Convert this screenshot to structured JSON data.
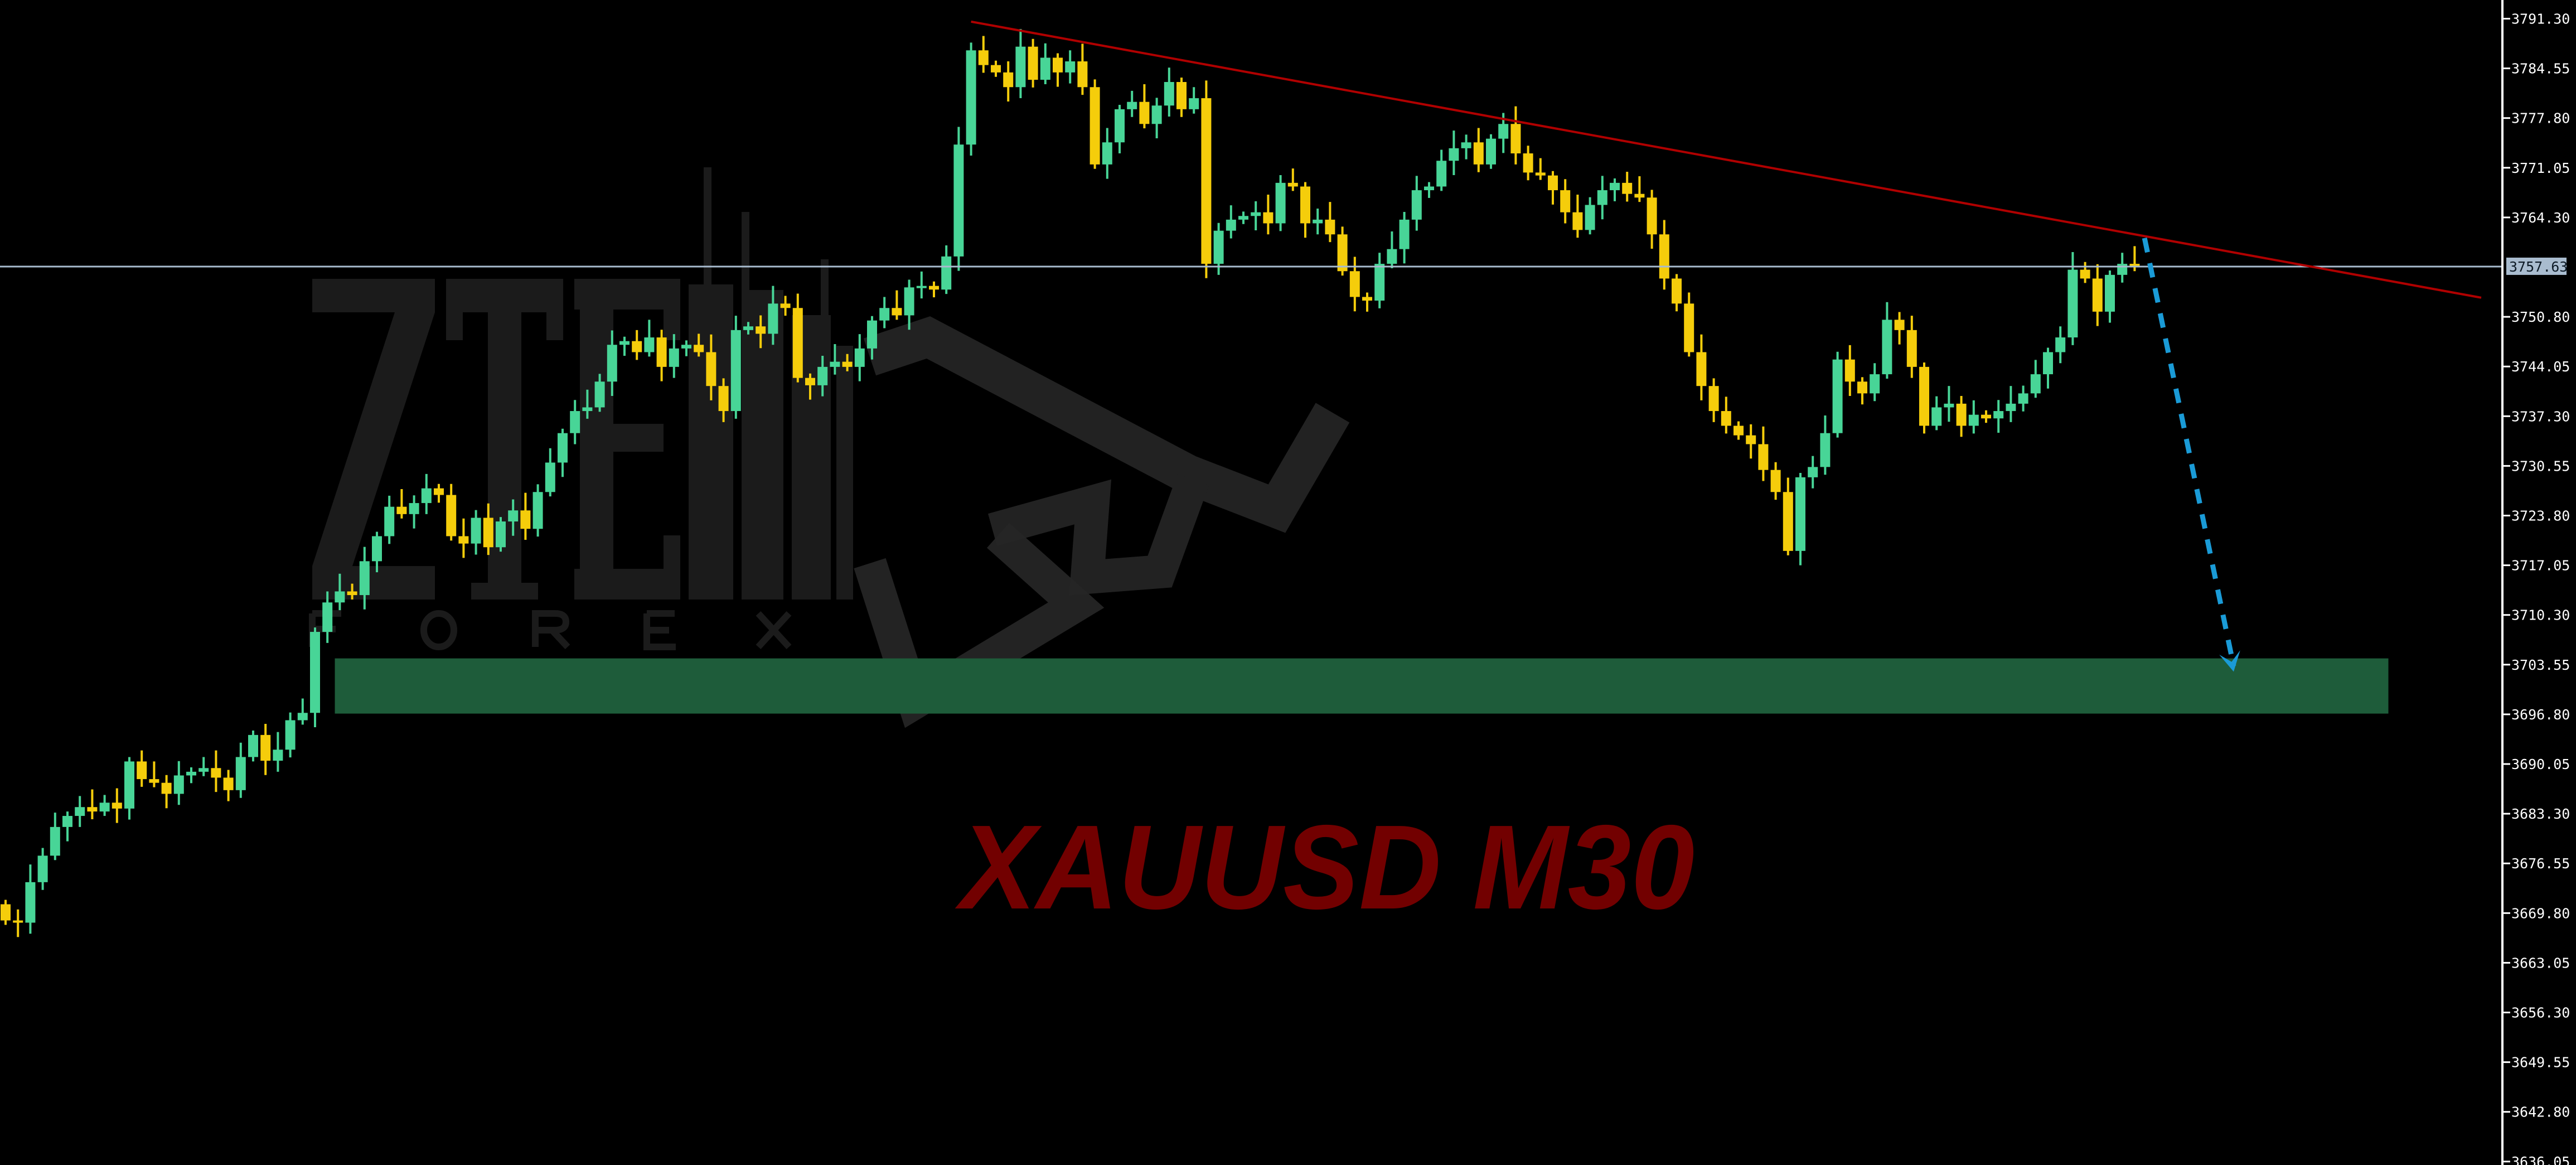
{
  "chart_data": {
    "type": "candlestick",
    "title": "XAUUSD M30",
    "symbol": "XAUUSD",
    "timeframe": "M30",
    "ylim": [
      3634.5,
      3793.8
    ],
    "y_ticks": [
      "3791.30",
      "3784.55",
      "3777.80",
      "3771.05",
      "3764.30",
      "3757.63",
      "3750.80",
      "3744.05",
      "3737.30",
      "3730.55",
      "3723.80",
      "3717.05",
      "3710.30",
      "3703.55",
      "3696.80",
      "3690.05",
      "3683.30",
      "3676.55",
      "3669.80",
      "3663.05",
      "3656.30",
      "3649.55",
      "3642.80",
      "3636.05"
    ],
    "current_price": 3757.63,
    "current_price_label": "3757.63",
    "first_open": 3671.0,
    "close": [
      3668.8,
      3668.5,
      3674.0,
      3677.6,
      3681.5,
      3683.0,
      3684.2,
      3683.6,
      3684.8,
      3684.0,
      3690.4,
      3688.0,
      3687.5,
      3686.0,
      3688.5,
      3689.0,
      3689.5,
      3688.2,
      3686.5,
      3691.0,
      3694.0,
      3690.5,
      3692.0,
      3696.0,
      3697.0,
      3708.0,
      3712.0,
      3713.5,
      3713.0,
      3717.6,
      3721.0,
      3725.0,
      3724.0,
      3725.5,
      3727.5,
      3726.6,
      3721.0,
      3720.0,
      3723.5,
      3719.5,
      3723.0,
      3724.5,
      3722.0,
      3727.0,
      3731.0,
      3735.0,
      3738.0,
      3738.5,
      3742.0,
      3747.0,
      3747.5,
      3746.0,
      3748.0,
      3744.0,
      3746.5,
      3747.0,
      3746.0,
      3741.4,
      3738.0,
      3749.0,
      3749.5,
      3748.5,
      3752.6,
      3752.0,
      3742.5,
      3741.5,
      3744.0,
      3744.7,
      3744.0,
      3746.5,
      3750.3,
      3752.0,
      3751.0,
      3754.8,
      3755.0,
      3754.5,
      3759.0,
      3774.2,
      3787.0,
      3785.0,
      3784.0,
      3782.0,
      3787.5,
      3783.0,
      3786.0,
      3784.0,
      3785.5,
      3782.0,
      3771.5,
      3774.5,
      3779.0,
      3780.0,
      3777.0,
      3779.5,
      3782.7,
      3779.0,
      3780.5,
      3758.0,
      3762.5,
      3764.0,
      3764.5,
      3765.0,
      3763.5,
      3769.0,
      3768.5,
      3763.5,
      3764.0,
      3762.0,
      3757.0,
      3753.5,
      3753.0,
      3758.0,
      3760.0,
      3764.0,
      3768.0,
      3768.5,
      3772.0,
      3773.7,
      3774.5,
      3771.5,
      3775.0,
      3777.0,
      3773.0,
      3770.4,
      3770.0,
      3768.0,
      3765.0,
      3762.6,
      3766.0,
      3768.0,
      3769.0,
      3767.5,
      3767.0,
      3762.0,
      3756.0,
      3752.6,
      3746.0,
      3741.4,
      3738.0,
      3736.0,
      3734.7,
      3733.5,
      3730.0,
      3727.0,
      3719.0,
      3729.0,
      3730.4,
      3735.0,
      3745.0,
      3742.0,
      3740.4,
      3743.0,
      3750.4,
      3749.0,
      3744.0,
      3736.0,
      3738.5,
      3739.0,
      3736.0,
      3737.5,
      3737.0,
      3738.0,
      3739.0,
      3740.4,
      3743.0,
      3746.0,
      3748.0,
      3757.2,
      3756.0,
      3751.5,
      3756.5,
      3758.0,
      3757.6
    ],
    "trendline": {
      "from": {
        "bar": 78,
        "price": 3790.9
      },
      "to": {
        "bar": 200,
        "price": 3753.4
      },
      "color": "#b00000"
    },
    "demand_zone": {
      "from_bar": 26.6,
      "to_bar": 192.5,
      "price_high": 3704.4,
      "price_low": 3696.9,
      "color": "#1e5c3a"
    },
    "projection_arrow": {
      "from": {
        "bar": 172.8,
        "price": 3761.5
      },
      "to": {
        "bar": 180.0,
        "price": 3702.6
      },
      "style": "dashed",
      "color": "#1a9bd7"
    },
    "colors": {
      "background": "#000000",
      "bull": "#48d597",
      "bear": "#f5cd0b",
      "axis": "#ffffff",
      "current_price_line": "#a9bccf",
      "title": "#720000"
    },
    "grid": false
  },
  "watermark": {
    "logo_text": "ZTE",
    "sub_text": "FOREX"
  }
}
